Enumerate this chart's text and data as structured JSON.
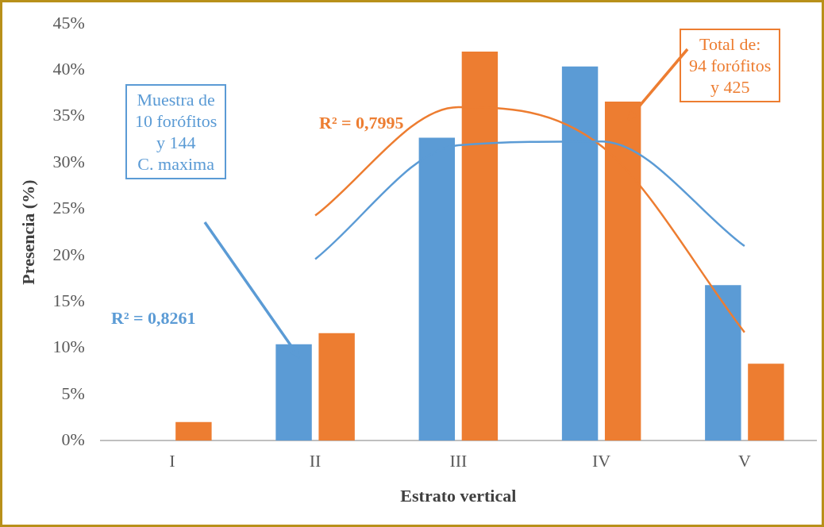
{
  "chart_data": {
    "type": "bar",
    "xlabel": "Estrato vertical",
    "ylabel": "Presencia (%)",
    "categories": [
      "I",
      "II",
      "III",
      "IV",
      "V"
    ],
    "series": [
      {
        "color": "#5b9bd5",
        "values": [
          null,
          10.4,
          32.7,
          40.4,
          16.8
        ]
      },
      {
        "color": "#ed7d31",
        "values": [
          2.0,
          11.6,
          42.0,
          36.6,
          8.3
        ]
      },
      {
        "type": "line",
        "color": "#5b9bd5",
        "values": [
          null,
          19.6,
          31.9,
          32.3,
          21.0
        ]
      },
      {
        "type": "line",
        "color": "#ed7d31",
        "values": [
          null,
          24.3,
          36.0,
          31.8,
          11.7
        ]
      }
    ],
    "ylim": [
      0,
      45
    ],
    "yticks": [
      {
        "value": 0,
        "label": "0%"
      },
      {
        "value": 5,
        "label": "5%"
      },
      {
        "value": 10,
        "label": "10%"
      },
      {
        "value": 15,
        "label": "15%"
      },
      {
        "value": 20,
        "label": "20%"
      },
      {
        "value": 25,
        "label": "25%"
      },
      {
        "value": 30,
        "label": "30%"
      },
      {
        "value": 35,
        "label": "35%"
      },
      {
        "value": 40,
        "label": "40%"
      },
      {
        "value": 45,
        "label": "45%"
      }
    ],
    "grid": false,
    "legend": false,
    "annotations": [
      "Muestra de\n10 forófitos\ny 144\nC. maxima",
      "R² = 0,8261",
      "R² = 0,7995",
      "Total de:\n94 forófitos\ny 425"
    ]
  }
}
